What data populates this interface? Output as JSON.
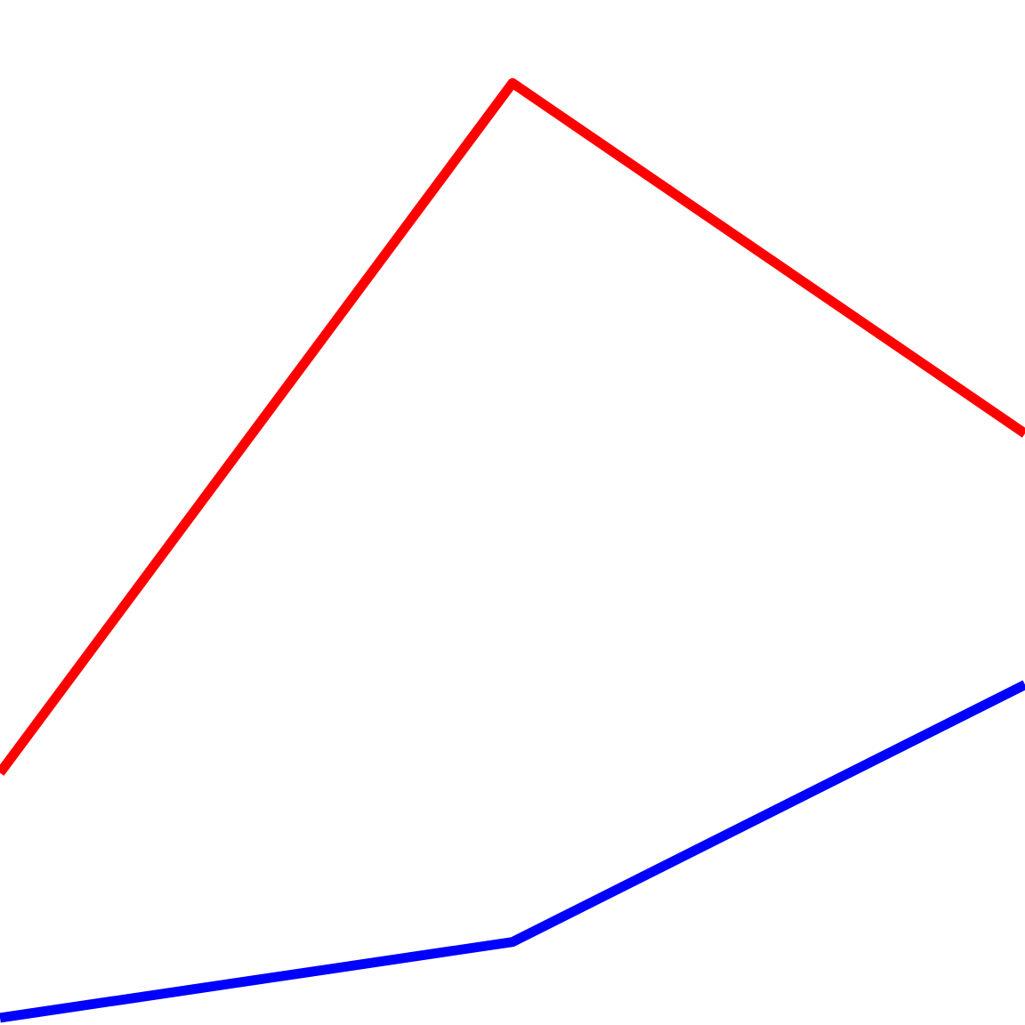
{
  "chart_data": {
    "type": "line",
    "title": "",
    "xlabel": "",
    "ylabel": "",
    "x": [
      0,
      1,
      2
    ],
    "xlim": [
      0,
      2
    ],
    "ylim": [
      0,
      1
    ],
    "grid": false,
    "legend": "none",
    "series": [
      {
        "color": "#ff0000",
        "values": [
          0.246,
          0.919,
          0.577
        ]
      },
      {
        "color": "#0000ff",
        "values": [
          0.007,
          0.081,
          0.332
        ]
      }
    ]
  }
}
